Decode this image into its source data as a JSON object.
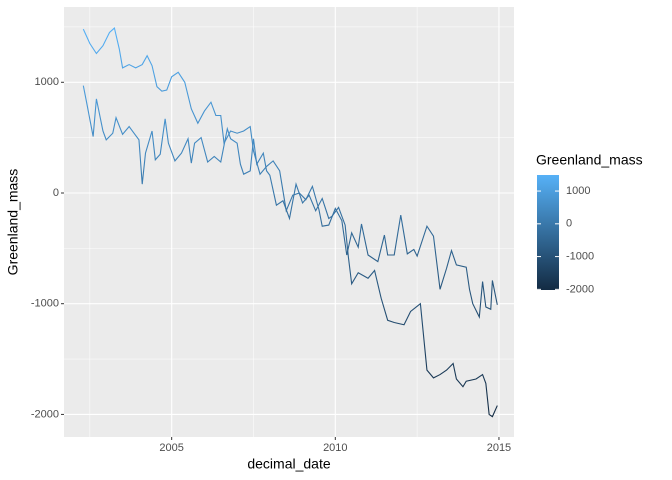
{
  "chart_data": {
    "type": "line",
    "x_label": "decimal_date",
    "y_label": "Greenland_mass",
    "series": [
      {
        "x": [
          2002.3,
          2002.5,
          2002.7,
          2002.9,
          2003.1,
          2003.25,
          2003.4,
          2003.5,
          2003.7,
          2003.9,
          2004.1,
          2004.25,
          2004.4,
          2004.55,
          2004.7,
          2004.85,
          2005.0,
          2005.2,
          2005.4,
          2005.6,
          2005.8,
          2006.0,
          2006.2,
          2006.35,
          2006.5,
          2006.6,
          2006.8,
          2007.0,
          2007.2,
          2007.4,
          2007.5,
          2007.7,
          2007.9,
          2008.1,
          2008.3,
          2008.5,
          2008.7,
          2008.9,
          2009.1,
          2009.3,
          2009.5,
          2009.6,
          2009.8,
          2010.0,
          2010.2,
          2010.35,
          2010.5,
          2010.7,
          2010.8,
          2011.0,
          2011.3,
          2011.5,
          2011.6,
          2011.8,
          2012.0,
          2012.2,
          2012.4,
          2012.5,
          2012.8,
          2013.0,
          2013.2,
          2013.4,
          2013.55,
          2013.7,
          2014.0,
          2014.1,
          2014.2,
          2014.4,
          2014.5,
          2014.6,
          2014.75,
          2014.8,
          2014.95
        ],
        "values": [
          1480,
          1350,
          1260,
          1330,
          1450,
          1490,
          1300,
          1130,
          1160,
          1130,
          1160,
          1240,
          1150,
          960,
          920,
          930,
          1050,
          1090,
          1000,
          760,
          630,
          740,
          820,
          700,
          700,
          450,
          560,
          540,
          560,
          600,
          380,
          170,
          240,
          290,
          200,
          -160,
          -20,
          0,
          -60,
          60,
          -150,
          -300,
          -290,
          -140,
          -250,
          -560,
          -360,
          -490,
          -280,
          -560,
          -620,
          -380,
          -560,
          -560,
          -200,
          -550,
          -510,
          -570,
          -300,
          -390,
          -870,
          -680,
          -520,
          -650,
          -670,
          -870,
          -1000,
          -1120,
          -800,
          -1030,
          -1050,
          -790,
          -1010
        ]
      },
      {
        "x": [
          2002.3,
          2002.4,
          2002.6,
          2002.7,
          2002.9,
          2003.0,
          2003.2,
          2003.3,
          2003.5,
          2003.7,
          2003.9,
          2004.0,
          2004.1,
          2004.2,
          2004.4,
          2004.5,
          2004.65,
          2004.8,
          2004.9,
          2005.1,
          2005.3,
          2005.5,
          2005.6,
          2005.7,
          2005.9,
          2006.1,
          2006.3,
          2006.5,
          2006.7,
          2006.8,
          2007.0,
          2007.1,
          2007.2,
          2007.4,
          2007.5,
          2007.6,
          2007.8,
          2007.9,
          2008.0,
          2008.2,
          2008.4,
          2008.6,
          2008.8,
          2009.0,
          2009.2,
          2009.4,
          2009.6,
          2009.8,
          2009.9,
          2010.1,
          2010.3,
          2010.4,
          2010.5,
          2010.7,
          2011.0,
          2011.2,
          2011.4,
          2011.6,
          2011.8,
          2012.1,
          2012.3,
          2012.6,
          2012.8,
          2013.0,
          2013.2,
          2013.4,
          2013.6,
          2013.7,
          2013.9,
          2014.0,
          2014.3,
          2014.5,
          2014.6,
          2014.7,
          2014.8,
          2014.95
        ],
        "values": [
          970,
          820,
          510,
          850,
          560,
          480,
          540,
          680,
          530,
          600,
          520,
          480,
          80,
          360,
          560,
          300,
          350,
          670,
          450,
          290,
          360,
          490,
          270,
          450,
          500,
          280,
          330,
          280,
          580,
          490,
          450,
          260,
          170,
          200,
          490,
          260,
          360,
          200,
          160,
          -110,
          -70,
          -230,
          80,
          -90,
          -20,
          -160,
          -50,
          -230,
          -210,
          -130,
          -290,
          -580,
          -820,
          -720,
          -770,
          -700,
          -950,
          -1150,
          -1170,
          -1190,
          -1070,
          -1000,
          -1600,
          -1670,
          -1640,
          -1600,
          -1540,
          -1680,
          -1750,
          -1700,
          -1680,
          -1640,
          -1720,
          -2000,
          -2020,
          -1920
        ]
      }
    ],
    "xlim": [
      2001.71,
      2015.46
    ],
    "xticks": [
      2005,
      2010,
      2015
    ],
    "minor_xticks": [
      2002.5,
      2007.5,
      2012.5
    ],
    "ylim": [
      -2204,
      1680
    ],
    "yticks": [
      -2000,
      -1000,
      0,
      1000
    ],
    "minor_yticks": [
      -1500,
      -500,
      500,
      1500
    ],
    "grid": true,
    "colorbar": {
      "title": "Greenland_mass",
      "ticks": [
        1000,
        0,
        -1000,
        -2000
      ],
      "low_color": "#132B43",
      "high_color": "#56B1F7"
    }
  }
}
